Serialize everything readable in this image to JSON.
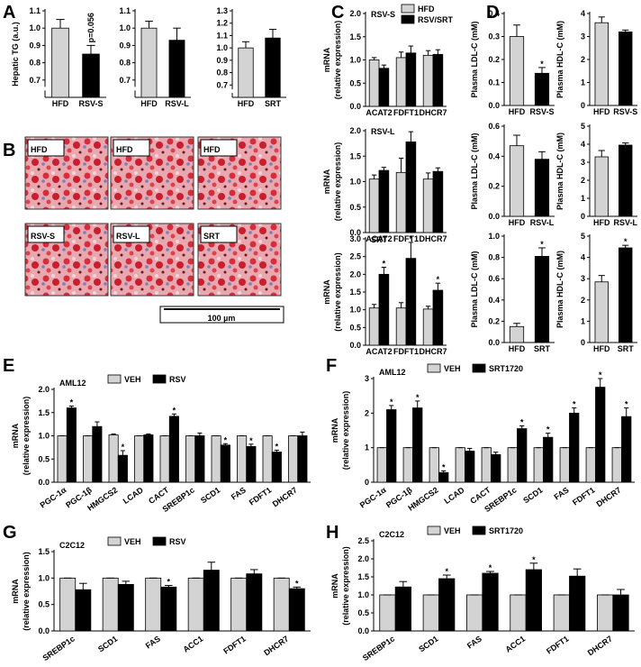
{
  "chart_data": [
    {
      "panel": "A",
      "type": "bar",
      "ylabel": [
        "Hepatic TG (a.u.)"
      ],
      "categories": [
        "HFD",
        "RSV-S"
      ],
      "values": [
        1.0,
        0.85
      ],
      "errors": [
        0.05,
        0.05
      ],
      "colors": [
        "#d3d3d3",
        "#000000"
      ],
      "ylim": [
        0.6,
        1.1
      ],
      "yticks": [
        0.7,
        0.8,
        0.9,
        {
          "value": 1.0,
          "label": "1.0"
        },
        1.1
      ],
      "axis_break": true,
      "annotations": [
        {
          "index": 1,
          "text": "p=0.056"
        }
      ]
    },
    {
      "type": "bar",
      "categories": [
        "HFD",
        "RSV-L"
      ],
      "values": [
        1.0,
        0.93
      ],
      "errors": [
        0.04,
        0.07
      ],
      "colors": [
        "#d3d3d3",
        "#000000"
      ],
      "ylim": [
        0.6,
        1.1
      ],
      "yticks": [
        0.7,
        0.8,
        0.9,
        {
          "value": 1.0,
          "label": "1.0"
        },
        1.1
      ],
      "axis_break": true
    },
    {
      "type": "bar",
      "categories": [
        "HFD",
        "SRT"
      ],
      "values": [
        1.0,
        1.08
      ],
      "errors": [
        0.05,
        0.07
      ],
      "colors": [
        "#d3d3d3",
        "#000000"
      ],
      "ylim": [
        0.6,
        1.3
      ],
      "yticks": [
        0.7,
        0.8,
        0.9,
        {
          "value": 1.0,
          "label": "1.0"
        },
        1.1,
        1.2,
        1.3
      ],
      "axis_break": true
    },
    {
      "panel": "C",
      "type": "grouped-bar",
      "title": "RSV-S",
      "ylabel": [
        "mRNA",
        "(relative expression)"
      ],
      "categories": [
        "ACAT2",
        "FDFT1",
        "DHCR7"
      ],
      "legend": "top-right",
      "series": [
        {
          "name": "HFD",
          "color": "#d3d3d3",
          "values": [
            1.0,
            1.05,
            1.1
          ],
          "errors": [
            0.05,
            0.12,
            0.1
          ]
        },
        {
          "name": "RSV/SRT",
          "color": "#000000",
          "values": [
            0.82,
            1.15,
            1.12
          ],
          "errors": [
            0.07,
            0.15,
            0.1
          ]
        }
      ],
      "ylim": [
        0,
        2
      ],
      "yticks": [
        {
          "value": 0,
          "label": "0.0"
        },
        0.5,
        {
          "value": 1,
          "label": "1.0"
        },
        1.5,
        {
          "value": 2,
          "label": "2.0"
        }
      ]
    },
    {
      "type": "grouped-bar",
      "title": "RSV-L",
      "ylabel": [
        "mRNA",
        "(relative expression)"
      ],
      "categories": [
        "ACAT2",
        "FDFT1",
        "DHCR7"
      ],
      "series": [
        {
          "color": "#d3d3d3",
          "values": [
            1.05,
            1.18,
            1.05
          ],
          "errors": [
            0.08,
            0.28,
            0.12
          ]
        },
        {
          "color": "#000000",
          "values": [
            1.22,
            1.78,
            1.2
          ],
          "errors": [
            0.06,
            0.2,
            0.07
          ]
        }
      ],
      "ylim": [
        0,
        2
      ],
      "yticks": [
        {
          "value": 0,
          "label": "0.0"
        },
        0.5,
        {
          "value": 1,
          "label": "1.0"
        },
        1.5,
        {
          "value": 2,
          "label": "2.0"
        }
      ]
    },
    {
      "type": "grouped-bar",
      "title": "SRT",
      "ylabel": [
        "mRNA",
        "(relative expression)"
      ],
      "categories": [
        "ACAT2",
        "FDFT1",
        "DHCR7"
      ],
      "series": [
        {
          "color": "#d3d3d3",
          "values": [
            1.05,
            1.05,
            1.02
          ],
          "errors": [
            0.1,
            0.15,
            0.08
          ]
        },
        {
          "color": "#000000",
          "values": [
            2.0,
            2.45,
            1.55
          ],
          "errors": [
            0.2,
            0.45,
            0.2
          ]
        }
      ],
      "annotations": [
        {
          "series": 1,
          "index": 0,
          "text": "*"
        },
        {
          "series": 1,
          "index": 1,
          "text": "*"
        },
        {
          "series": 1,
          "index": 2,
          "text": "*"
        }
      ],
      "ylim": [
        0,
        3
      ],
      "yticks": [
        {
          "value": 0,
          "label": "0.0"
        },
        0.5,
        {
          "value": 1,
          "label": "1.0"
        },
        1.5,
        {
          "value": 2,
          "label": "2.0"
        },
        2.5,
        {
          "value": 3,
          "label": "3.0"
        }
      ]
    },
    {
      "panel": "D",
      "type": "bar",
      "ylabel": [
        "Plasma LDL-C (mM)"
      ],
      "categories": [
        "HFD",
        "RSV-S"
      ],
      "values": [
        0.3,
        0.14
      ],
      "errors": [
        0.05,
        0.025
      ],
      "colors": [
        "#d3d3d3",
        "#000000"
      ],
      "ylim": [
        0,
        0.4
      ],
      "yticks": [
        {
          "value": 0,
          "label": "0.0"
        },
        0.1,
        0.2,
        0.3,
        0.4
      ],
      "annotations": [
        {
          "index": 1,
          "text": "*"
        }
      ]
    },
    {
      "type": "bar",
      "ylabel": [
        "Plasma HDL-C (mM)"
      ],
      "categories": [
        "HFD",
        "RSV-S"
      ],
      "values": [
        3.6,
        3.2
      ],
      "errors": [
        0.25,
        0.08
      ],
      "colors": [
        "#d3d3d3",
        "#000000"
      ],
      "ylim": [
        0,
        4
      ],
      "yticks": [
        0,
        1,
        2,
        3,
        4
      ]
    },
    {
      "type": "bar",
      "ylabel": [
        "Plasma LDL-C (mM)"
      ],
      "categories": [
        "HFD",
        "RSV-L"
      ],
      "values": [
        0.47,
        0.38
      ],
      "errors": [
        0.07,
        0.05
      ],
      "colors": [
        "#d3d3d3",
        "#000000"
      ],
      "ylim": [
        0,
        0.6
      ],
      "yticks": [
        {
          "value": 0,
          "label": "0.0"
        },
        0.2,
        0.4,
        0.6
      ]
    },
    {
      "type": "bar",
      "ylabel": [
        "Plasma HDL-C (mM)"
      ],
      "categories": [
        "HFD",
        "RSV-L"
      ],
      "values": [
        3.3,
        3.95
      ],
      "errors": [
        0.35,
        0.12
      ],
      "colors": [
        "#d3d3d3",
        "#000000"
      ],
      "ylim": [
        0,
        5
      ],
      "yticks": [
        0,
        1,
        2,
        3,
        4,
        5
      ]
    },
    {
      "type": "bar",
      "ylabel": [
        "Plasma LDL-C (mM)"
      ],
      "categories": [
        "HFD",
        "SRT"
      ],
      "values": [
        0.15,
        0.81
      ],
      "errors": [
        0.03,
        0.08
      ],
      "colors": [
        "#d3d3d3",
        "#000000"
      ],
      "ylim": [
        0,
        1
      ],
      "yticks": [
        {
          "value": 0,
          "label": "0.0"
        },
        0.2,
        0.4,
        0.6,
        0.8,
        {
          "value": 1,
          "label": "1.0"
        }
      ],
      "annotations": [
        {
          "index": 1,
          "text": "*"
        }
      ]
    },
    {
      "type": "bar",
      "ylabel": [
        "Plasma HDL-C (mM)"
      ],
      "categories": [
        "HFD",
        "SRT"
      ],
      "values": [
        2.85,
        4.45
      ],
      "errors": [
        0.3,
        0.12
      ],
      "colors": [
        "#d3d3d3",
        "#000000"
      ],
      "ylim": [
        0,
        5
      ],
      "yticks": [
        0,
        1,
        2,
        3,
        4,
        5
      ],
      "annotations": [
        {
          "index": 1,
          "text": "*"
        }
      ]
    },
    {
      "panel": "E",
      "type": "grouped-bar",
      "title": "AML12",
      "ylabel": [
        "mRNA",
        "(relative expression)"
      ],
      "legend": "top",
      "categories": [
        "PGC-1α",
        "PGC-1β",
        "HMGCS2",
        "LCAD",
        "CACT",
        "SREBP1c",
        "SCD1",
        "FAS",
        "FDFT1",
        "DHCR7"
      ],
      "series": [
        {
          "name": "VEH",
          "color": "#d3d3d3",
          "values": [
            1,
            1,
            1.02,
            1,
            1,
            1,
            1,
            1,
            1,
            1
          ],
          "errors": [
            0,
            0,
            0.02,
            0,
            0,
            0,
            0,
            0,
            0,
            0
          ]
        },
        {
          "name": "RSV",
          "color": "#000000",
          "values": [
            1.6,
            1.2,
            0.58,
            1.02,
            1.42,
            1.0,
            0.8,
            0.77,
            0.65,
            1.0
          ],
          "errors": [
            0.04,
            0.1,
            0.1,
            0.02,
            0.05,
            0.06,
            0.03,
            0.05,
            0.04,
            0.08
          ]
        }
      ],
      "annotations": [
        {
          "series": 1,
          "index": 0,
          "text": "*"
        },
        {
          "series": 1,
          "index": 2,
          "text": "*"
        },
        {
          "series": 1,
          "index": 4,
          "text": "*"
        },
        {
          "series": 1,
          "index": 6,
          "text": "*"
        },
        {
          "series": 1,
          "index": 7,
          "text": "*"
        },
        {
          "series": 1,
          "index": 8,
          "text": "*"
        }
      ],
      "ylim": [
        0,
        2
      ],
      "yticks": [
        {
          "value": 0,
          "label": "0.0"
        },
        0.5,
        {
          "value": 1,
          "label": "1.0"
        },
        1.5,
        {
          "value": 2,
          "label": "2.0"
        }
      ]
    },
    {
      "panel": "F",
      "type": "grouped-bar",
      "title": "AML12",
      "ylabel": [
        "mRNA",
        "(relative expression)"
      ],
      "legend": "top",
      "categories": [
        "PGC-1α",
        "PGC-1β",
        "HMGCS2",
        "LCAD",
        "CACT",
        "SREBP1c",
        "SCD1",
        "FAS",
        "FDFT1",
        "DHCR7"
      ],
      "series": [
        {
          "name": "VEH",
          "color": "#d3d3d3",
          "values": [
            1,
            1,
            1,
            1,
            1,
            1,
            1,
            1,
            1,
            1
          ],
          "errors": [
            0,
            0,
            0,
            0,
            0,
            0,
            0,
            0,
            0,
            0
          ]
        },
        {
          "name": "SRT1720",
          "color": "#000000",
          "values": [
            2.1,
            2.15,
            0.28,
            0.9,
            0.8,
            1.55,
            1.3,
            2.0,
            2.75,
            1.9
          ],
          "errors": [
            0.12,
            0.2,
            0.05,
            0.08,
            0.07,
            0.08,
            0.12,
            0.15,
            0.25,
            0.25
          ]
        }
      ],
      "annotations": [
        {
          "series": 1,
          "index": 0,
          "text": "*"
        },
        {
          "series": 1,
          "index": 1,
          "text": "*"
        },
        {
          "series": 1,
          "index": 2,
          "text": "*"
        },
        {
          "series": 1,
          "index": 5,
          "text": "*"
        },
        {
          "series": 1,
          "index": 6,
          "text": "*"
        },
        {
          "series": 1,
          "index": 7,
          "text": "*"
        },
        {
          "series": 1,
          "index": 8,
          "text": "*"
        },
        {
          "series": 1,
          "index": 9,
          "text": "*"
        }
      ],
      "ylim": [
        0,
        3
      ],
      "yticks": [
        0,
        1,
        2,
        3
      ]
    },
    {
      "panel": "G",
      "type": "grouped-bar",
      "title": "C2C12",
      "ylabel": [
        "mRNA",
        "(relative expression)"
      ],
      "legend": "top",
      "categories": [
        "SREBP1c",
        "SCD1",
        "FAS",
        "ACC1",
        "FDFT1",
        "DHCR7"
      ],
      "series": [
        {
          "name": "VEH",
          "color": "#d3d3d3",
          "values": [
            1,
            1,
            1,
            1,
            1,
            1
          ],
          "errors": [
            0,
            0,
            0,
            0,
            0,
            0
          ]
        },
        {
          "name": "RSV",
          "color": "#000000",
          "values": [
            0.78,
            0.88,
            0.83,
            1.15,
            1.08,
            0.8
          ],
          "errors": [
            0.12,
            0.06,
            0.03,
            0.15,
            0.08,
            0.03
          ]
        }
      ],
      "annotations": [
        {
          "series": 1,
          "index": 2,
          "text": "*"
        },
        {
          "series": 1,
          "index": 5,
          "text": "*"
        }
      ],
      "ylim": [
        0,
        1.5
      ],
      "yticks": [
        {
          "value": 0,
          "label": "0.0"
        },
        0.5,
        {
          "value": 1,
          "label": "1.0"
        },
        1.5
      ]
    },
    {
      "panel": "H",
      "type": "grouped-bar",
      "title": "C2C12",
      "ylabel": [
        "mRNA",
        "(relative expression)"
      ],
      "legend": "top",
      "categories": [
        "SREBP1c",
        "SCD1",
        "FAS",
        "ACC1",
        "FDFT1",
        "DHCR7"
      ],
      "series": [
        {
          "name": "VEH",
          "color": "#d3d3d3",
          "values": [
            1,
            1,
            1,
            1,
            1,
            1
          ],
          "errors": [
            0,
            0,
            0,
            0,
            0,
            0
          ]
        },
        {
          "name": "SRT1720",
          "color": "#000000",
          "values": [
            1.22,
            1.45,
            1.6,
            1.7,
            1.52,
            1.0
          ],
          "errors": [
            0.15,
            0.1,
            0.05,
            0.18,
            0.2,
            0.15
          ]
        }
      ],
      "annotations": [
        {
          "series": 1,
          "index": 1,
          "text": "*"
        },
        {
          "series": 1,
          "index": 2,
          "text": "*"
        },
        {
          "series": 1,
          "index": 3,
          "text": "*"
        }
      ],
      "ylim": [
        0,
        2.5
      ],
      "yticks": [
        {
          "value": 0,
          "label": "0.0"
        },
        0.5,
        {
          "value": 1,
          "label": "1.0"
        },
        1.5,
        {
          "value": 2,
          "label": "2.0"
        },
        2.5
      ]
    }
  ],
  "images": {
    "panel": "B",
    "labels": [
      "HFD",
      "HFD",
      "HFD",
      "RSV-S",
      "RSV-L",
      "SRT"
    ],
    "scale_bar": "100 µm"
  }
}
